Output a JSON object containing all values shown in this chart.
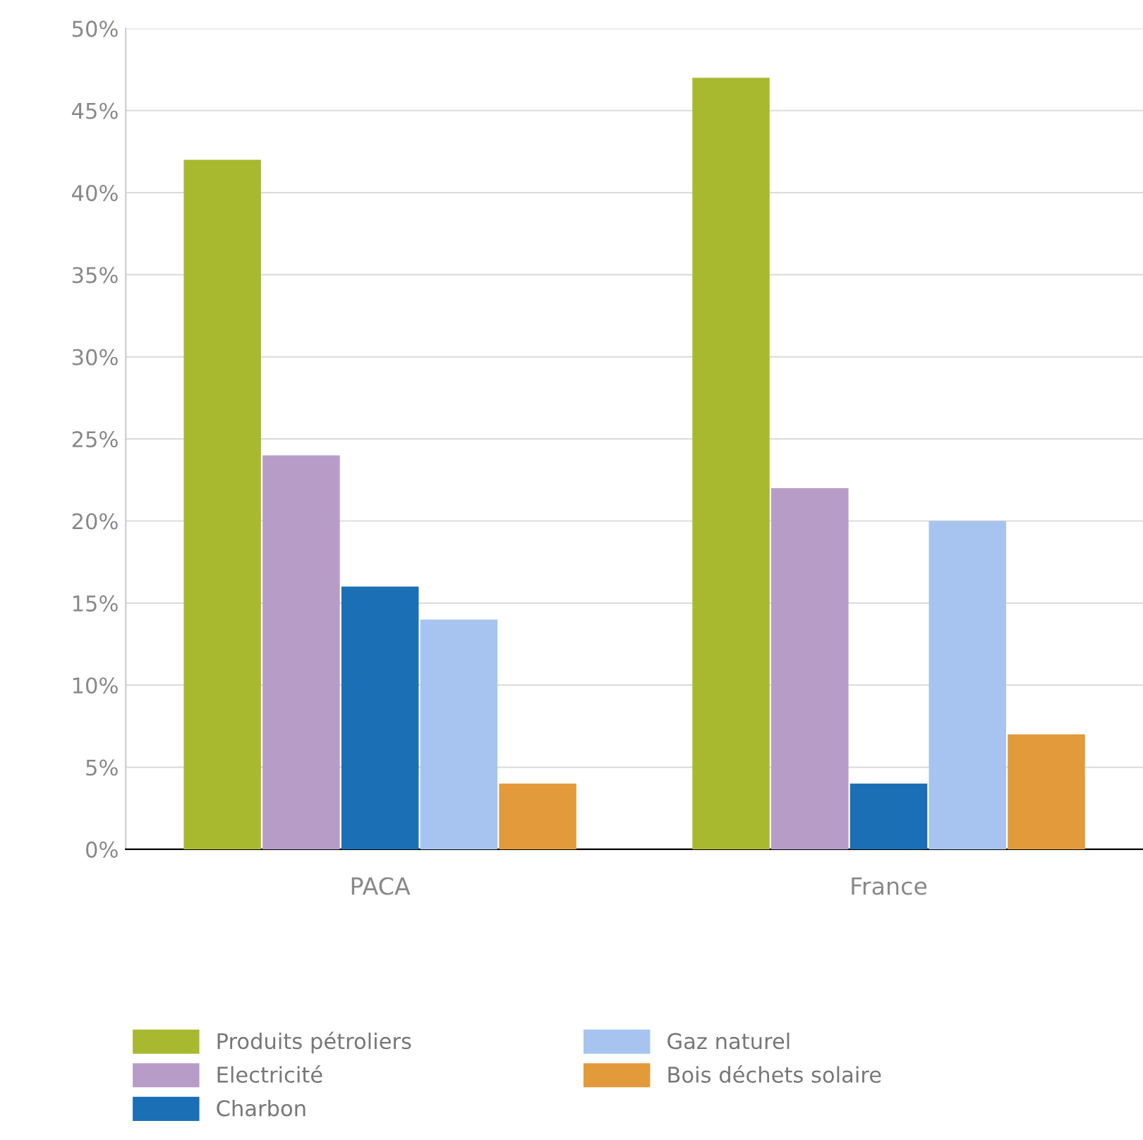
{
  "chart_data": {
    "type": "bar",
    "categories": [
      "PACA",
      "France"
    ],
    "series": [
      {
        "name": "Produits pétroliers",
        "color": "#a9b92f",
        "values": [
          42,
          47
        ]
      },
      {
        "name": "Electricité",
        "color": "#b79cc8",
        "values": [
          24,
          22
        ]
      },
      {
        "name": "Charbon",
        "color": "#1a6fb5",
        "values": [
          16,
          4
        ]
      },
      {
        "name": "Gaz naturel",
        "color": "#a6c4ef",
        "values": [
          14,
          20
        ]
      },
      {
        "name": "Bois déchets solaire",
        "color": "#e39a3a",
        "values": [
          4,
          7
        ]
      }
    ],
    "ylim": [
      0,
      50
    ],
    "yticks": [
      {
        "value": 0,
        "label": "0%"
      },
      {
        "value": 5,
        "label": "5%"
      },
      {
        "value": 10,
        "label": "10%"
      },
      {
        "value": 15,
        "label": "15%"
      },
      {
        "value": 20,
        "label": "20%"
      },
      {
        "value": 25,
        "label": "25%"
      },
      {
        "value": 30,
        "label": "30%"
      },
      {
        "value": 35,
        "label": "35%"
      },
      {
        "value": 40,
        "label": "40%"
      },
      {
        "value": 45,
        "label": "45%"
      },
      {
        "value": 50,
        "label": "50%"
      }
    ],
    "grid": "y",
    "legend": "bottom"
  }
}
